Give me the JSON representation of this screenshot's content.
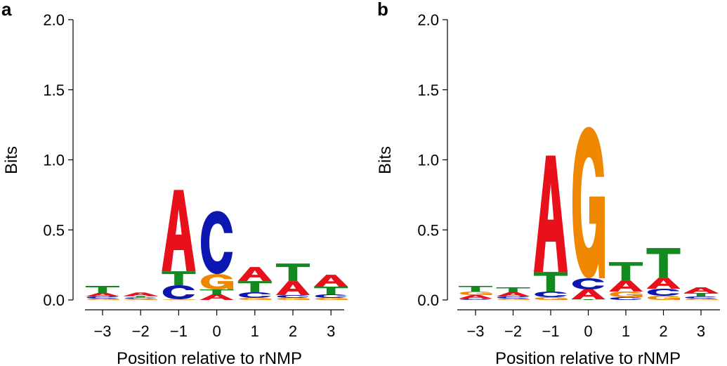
{
  "colors": {
    "A": "#e8111b",
    "C": "#0c16b0",
    "G": "#ef8700",
    "T": "#128a20",
    "axis": "#000000"
  },
  "chart_data": [
    {
      "type": "sequence-logo",
      "panel_label": "a",
      "xlabel": "Position relative to rNMP",
      "ylabel": "Bits",
      "ylim": [
        0,
        2.0
      ],
      "yticks": [
        "0.0",
        "0.5",
        "1.0",
        "1.5",
        "2.0"
      ],
      "positions": [
        "−3",
        "−2",
        "−1",
        "0",
        "1",
        "2",
        "3"
      ],
      "stacks": [
        [
          {
            "base": "G",
            "bits": 0.01
          },
          {
            "base": "C",
            "bits": 0.015
          },
          {
            "base": "A",
            "bits": 0.025
          },
          {
            "base": "T",
            "bits": 0.05
          }
        ],
        [
          {
            "base": "G",
            "bits": 0.008
          },
          {
            "base": "C",
            "bits": 0.01
          },
          {
            "base": "T",
            "bits": 0.01
          },
          {
            "base": "A",
            "bits": 0.025
          }
        ],
        [
          {
            "base": "G",
            "bits": 0.005
          },
          {
            "base": "C",
            "bits": 0.1
          },
          {
            "base": "T",
            "bits": 0.1
          },
          {
            "base": "A",
            "bits": 0.58
          }
        ],
        [
          {
            "base": "A",
            "bits": 0.04
          },
          {
            "base": "T",
            "bits": 0.035
          },
          {
            "base": "G",
            "bits": 0.11
          },
          {
            "base": "C",
            "bits": 0.45
          }
        ],
        [
          {
            "base": "G",
            "bits": 0.015
          },
          {
            "base": "C",
            "bits": 0.04
          },
          {
            "base": "T",
            "bits": 0.08
          },
          {
            "base": "A",
            "bits": 0.1
          }
        ],
        [
          {
            "base": "G",
            "bits": 0.015
          },
          {
            "base": "C",
            "bits": 0.02
          },
          {
            "base": "A",
            "bits": 0.1
          },
          {
            "base": "T",
            "bits": 0.125
          }
        ],
        [
          {
            "base": "G",
            "bits": 0.015
          },
          {
            "base": "C",
            "bits": 0.025
          },
          {
            "base": "T",
            "bits": 0.055
          },
          {
            "base": "A",
            "bits": 0.085
          }
        ]
      ]
    },
    {
      "type": "sequence-logo",
      "panel_label": "b",
      "xlabel": "Position relative to rNMP",
      "ylabel": "Bits",
      "ylim": [
        0,
        2.0
      ],
      "yticks": [
        "0.0",
        "0.5",
        "1.0",
        "1.5",
        "2.0"
      ],
      "positions": [
        "−3",
        "−2",
        "−1",
        "0",
        "1",
        "2",
        "3"
      ],
      "stacks": [
        [
          {
            "base": "C",
            "bits": 0.01
          },
          {
            "base": "A",
            "bits": 0.025
          },
          {
            "base": "G",
            "bits": 0.025
          },
          {
            "base": "T",
            "bits": 0.04
          }
        ],
        [
          {
            "base": "G",
            "bits": 0.01
          },
          {
            "base": "C",
            "bits": 0.015
          },
          {
            "base": "A",
            "bits": 0.03
          },
          {
            "base": "T",
            "bits": 0.035
          }
        ],
        [
          {
            "base": "G",
            "bits": 0.02
          },
          {
            "base": "C",
            "bits": 0.04
          },
          {
            "base": "T",
            "bits": 0.14
          },
          {
            "base": "A",
            "bits": 0.83
          }
        ],
        [
          {
            "base": "T",
            "bits": 0.005
          },
          {
            "base": "A",
            "bits": 0.07
          },
          {
            "base": "C",
            "bits": 0.08
          },
          {
            "base": "G",
            "bits": 1.08
          }
        ],
        [
          {
            "base": "C",
            "bits": 0.02
          },
          {
            "base": "G",
            "bits": 0.04
          },
          {
            "base": "A",
            "bits": 0.08
          },
          {
            "base": "T",
            "bits": 0.13
          }
        ],
        [
          {
            "base": "G",
            "bits": 0.03
          },
          {
            "base": "C",
            "bits": 0.05
          },
          {
            "base": "A",
            "bits": 0.08
          },
          {
            "base": "T",
            "bits": 0.21
          }
        ],
        [
          {
            "base": "G",
            "bits": 0.01
          },
          {
            "base": "C",
            "bits": 0.015
          },
          {
            "base": "T",
            "bits": 0.025
          },
          {
            "base": "A",
            "bits": 0.04
          }
        ]
      ]
    }
  ]
}
